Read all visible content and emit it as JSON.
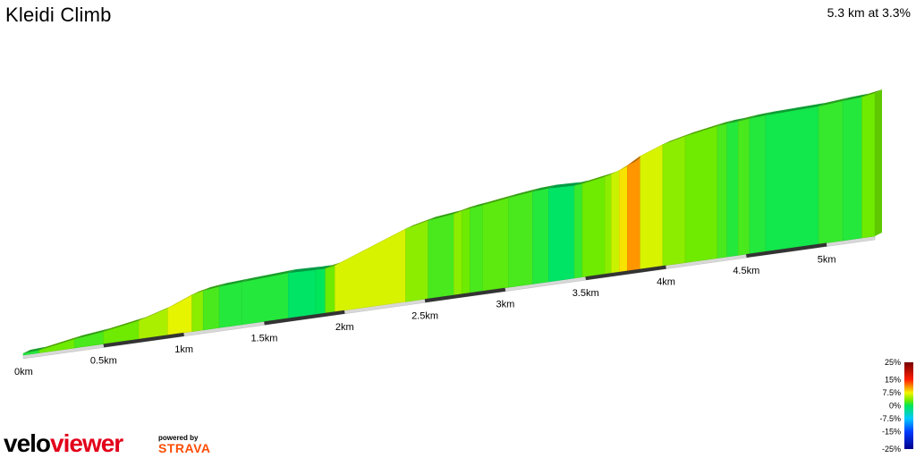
{
  "title": "Kleidi Climb",
  "summary": "5.3 km at 3.3%",
  "brand": {
    "name_part1": "velo",
    "name_part2": "viewer",
    "powered_by": "powered by",
    "partner": "STRAVA"
  },
  "chart_data": {
    "type": "area",
    "title": "Kleidi Climb",
    "distance_km": 5.3,
    "avg_gradient_pct": 3.3,
    "x_tick_labels": [
      "0km",
      "0.5km",
      "1km",
      "1.5km",
      "2km",
      "2.5km",
      "3km",
      "3.5km",
      "4km",
      "4.5km",
      "5km"
    ],
    "x_ticks_km": [
      0,
      0.5,
      1,
      1.5,
      2,
      2.5,
      3,
      3.5,
      4,
      4.5,
      5
    ],
    "gradient_scale_labels": [
      "25%",
      "15%",
      "7.5%",
      "0%",
      "-7.5%",
      "-15%",
      "-25%"
    ],
    "gradient_scale_values": [
      25,
      15,
      7.5,
      0,
      -7.5,
      -15,
      -25
    ],
    "segments": [
      {
        "start_km": 0.0,
        "end_km": 0.1,
        "gradient": 1
      },
      {
        "start_km": 0.1,
        "end_km": 0.32,
        "gradient": 3
      },
      {
        "start_km": 0.32,
        "end_km": 0.5,
        "gradient": 2
      },
      {
        "start_km": 0.5,
        "end_km": 0.72,
        "gradient": 3
      },
      {
        "start_km": 0.72,
        "end_km": 0.9,
        "gradient": 5
      },
      {
        "start_km": 0.9,
        "end_km": 1.05,
        "gradient": 7
      },
      {
        "start_km": 1.05,
        "end_km": 1.12,
        "gradient": 4
      },
      {
        "start_km": 1.12,
        "end_km": 1.22,
        "gradient": 2
      },
      {
        "start_km": 1.22,
        "end_km": 1.36,
        "gradient": 1
      },
      {
        "start_km": 1.36,
        "end_km": 1.65,
        "gradient": 1
      },
      {
        "start_km": 1.65,
        "end_km": 1.82,
        "gradient": -0.5
      },
      {
        "start_km": 1.82,
        "end_km": 1.88,
        "gradient": 0
      },
      {
        "start_km": 1.88,
        "end_km": 1.94,
        "gradient": 3
      },
      {
        "start_km": 1.94,
        "end_km": 2.38,
        "gradient": 6.5
      },
      {
        "start_km": 2.38,
        "end_km": 2.52,
        "gradient": 4
      },
      {
        "start_km": 2.52,
        "end_km": 2.68,
        "gradient": 2
      },
      {
        "start_km": 2.68,
        "end_km": 2.73,
        "gradient": 4
      },
      {
        "start_km": 2.73,
        "end_km": 2.78,
        "gradient": 3
      },
      {
        "start_km": 2.78,
        "end_km": 2.86,
        "gradient": 2
      },
      {
        "start_km": 2.86,
        "end_km": 3.02,
        "gradient": 2.5
      },
      {
        "start_km": 3.02,
        "end_km": 3.17,
        "gradient": 2
      },
      {
        "start_km": 3.17,
        "end_km": 3.27,
        "gradient": 1
      },
      {
        "start_km": 3.27,
        "end_km": 3.43,
        "gradient": -0.5
      },
      {
        "start_km": 3.43,
        "end_km": 3.48,
        "gradient": 1.5
      },
      {
        "start_km": 3.48,
        "end_km": 3.62,
        "gradient": 3
      },
      {
        "start_km": 3.62,
        "end_km": 3.66,
        "gradient": 4
      },
      {
        "start_km": 3.66,
        "end_km": 3.71,
        "gradient": 6
      },
      {
        "start_km": 3.71,
        "end_km": 3.76,
        "gradient": 8
      },
      {
        "start_km": 3.76,
        "end_km": 3.84,
        "gradient": 10
      },
      {
        "start_km": 3.84,
        "end_km": 3.98,
        "gradient": 6.5
      },
      {
        "start_km": 3.98,
        "end_km": 4.12,
        "gradient": 4
      },
      {
        "start_km": 4.12,
        "end_km": 4.32,
        "gradient": 3
      },
      {
        "start_km": 4.32,
        "end_km": 4.38,
        "gradient": 2
      },
      {
        "start_km": 4.38,
        "end_km": 4.45,
        "gradient": 1
      },
      {
        "start_km": 4.45,
        "end_km": 4.52,
        "gradient": 2
      },
      {
        "start_km": 4.52,
        "end_km": 4.62,
        "gradient": 1
      },
      {
        "start_km": 4.62,
        "end_km": 4.95,
        "gradient": 0.5
      },
      {
        "start_km": 4.95,
        "end_km": 5.1,
        "gradient": 1.5
      },
      {
        "start_km": 5.1,
        "end_km": 5.22,
        "gradient": 1
      },
      {
        "start_km": 5.22,
        "end_km": 5.3,
        "gradient": 3
      }
    ]
  }
}
